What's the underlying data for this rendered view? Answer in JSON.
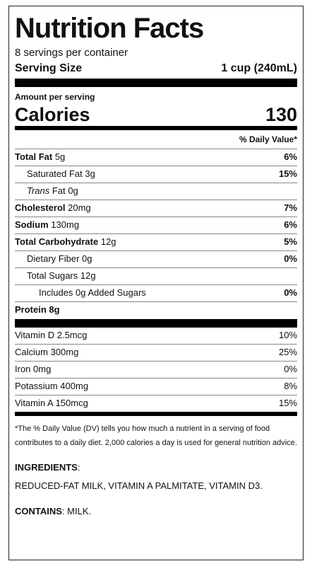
{
  "label": {
    "title": "Nutrition Facts",
    "servings": "8 servings per container",
    "serving_size_label": "Serving Size",
    "serving_size_value": "1 cup (240mL)",
    "amount_per_serving": "Amount per serving",
    "calories_label": "Calories",
    "calories_value": "130",
    "dv_header": "% Daily Value*",
    "nutrients": [
      {
        "name": "Total Fat",
        "amount": "5g",
        "dv": "6%"
      },
      {
        "name": "Saturated Fat",
        "amount": "3g",
        "dv": "15%"
      },
      {
        "name_italic": "Trans",
        "name": "Fat",
        "amount": "0g",
        "dv": ""
      },
      {
        "name": "Cholesterol",
        "amount": "20mg",
        "dv": "7%"
      },
      {
        "name": "Sodium",
        "amount": "130mg",
        "dv": "6%"
      },
      {
        "name": "Total Carbohydrate",
        "amount": "12g",
        "dv": "5%"
      },
      {
        "name": "Dietary Fiber",
        "amount": "0g",
        "dv": "0%"
      },
      {
        "name": "Total Sugars",
        "amount": "12g",
        "dv": ""
      },
      {
        "name": "Includes 0g Added Sugars",
        "amount": "",
        "dv": "0%"
      },
      {
        "name": "Protein",
        "amount": "8g",
        "dv": ""
      }
    ],
    "vitamins": [
      {
        "name": "Vitamin D 2.5mcg",
        "dv": "10%"
      },
      {
        "name": "Calcium 300mg",
        "dv": "25%"
      },
      {
        "name": "Iron 0mg",
        "dv": "0%"
      },
      {
        "name": "Potassium 400mg",
        "dv": "8%"
      },
      {
        "name": "Vitamin A 150mcg",
        "dv": "15%"
      }
    ],
    "footnote": "*The % Daily Value (DV) tells you how much a nutrient in a serving of food contributes to a daily diet. 2,000 calories a day is used for general nutrition advice.",
    "ingredients_head": "INGREDIENTS",
    "ingredients_colon": ":",
    "ingredients_text": "REDUCED-FAT MILK, VITAMIN A PALMITATE, VITAMIN D3.",
    "contains_head": "CONTAINS",
    "contains_text": ": MILK."
  }
}
